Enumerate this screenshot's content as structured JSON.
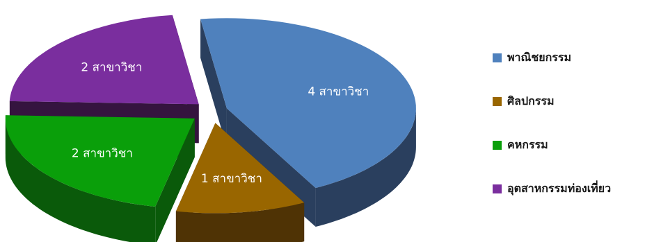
{
  "chart_data": {
    "type": "pie",
    "style": "3d-exploded",
    "slices": [
      {
        "name": "พาณิชยกรรม",
        "value": 4,
        "label": "4 สาขาวิชา",
        "color": "#4f81bd",
        "side_color": "#2a3f5e"
      },
      {
        "name": "ศิลปกรรม",
        "value": 1,
        "label": "1 สาขาวิชา",
        "color": "#996600",
        "side_color": "#4f3305"
      },
      {
        "name": "คหกรรม",
        "value": 2,
        "label": "2 สาขาวิชา",
        "color": "#0a9f0a",
        "side_color": "#0a5a0a"
      },
      {
        "name": "อุตสาหกรรมท่องเที่ยว",
        "value": 2,
        "label": "2 สาขาวิชา",
        "color": "#7a2e9e",
        "side_color": "#35143f"
      }
    ],
    "legend_position": "right"
  }
}
